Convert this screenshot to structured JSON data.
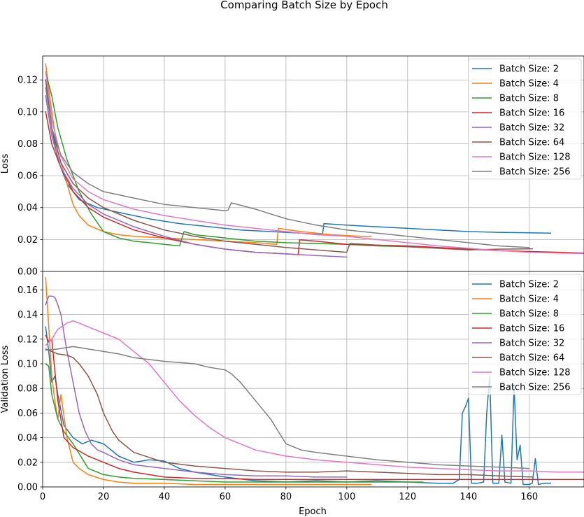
{
  "chart_data": {
    "type": "line",
    "title": "Comparing Batch Size by Epoch",
    "colors": {
      "Batch Size: 2": "#1f77b4",
      "Batch Size: 4": "#ff7f0e",
      "Batch Size: 8": "#2ca02c",
      "Batch Size: 16": "#d62728",
      "Batch Size: 32": "#9467bd",
      "Batch Size: 64": "#8c564b",
      "Batch Size: 128": "#e377c2",
      "Batch Size: 256": "#7f7f7f"
    },
    "xlabel": "Epoch",
    "xlim": [
      0,
      178
    ],
    "xticks": [
      0,
      20,
      40,
      60,
      80,
      100,
      120,
      140,
      160
    ],
    "grid": true,
    "legend_position": "top-right",
    "panels": [
      {
        "id": "loss",
        "ylabel": "Loss",
        "ylim": [
          0,
          0.135
        ],
        "yticks": [
          "0.00",
          "0.02",
          "0.04",
          "0.06",
          "0.08",
          "0.10",
          "0.12"
        ],
        "series": [
          {
            "name": "Batch Size: 2",
            "x": [
              1,
              3,
              5,
              8,
              12,
              18,
              25,
              35,
              45,
              55,
              65,
              75,
              85,
              92,
              92.5,
              100,
              110,
              120,
              130,
              140,
              150,
              160,
              167
            ],
            "y": [
              0.12,
              0.09,
              0.07,
              0.055,
              0.045,
              0.04,
              0.037,
              0.033,
              0.03,
              0.028,
              0.026,
              0.025,
              0.024,
              0.023,
              0.03,
              0.029,
              0.028,
              0.027,
              0.026,
              0.025,
              0.0245,
              0.0242,
              0.024
            ]
          },
          {
            "name": "Batch Size: 4",
            "x": [
              1,
              3,
              5,
              8,
              10,
              12,
              15,
              20,
              25,
              30,
              40,
              50,
              60,
              70,
              77,
              77.5,
              85,
              95,
              105,
              108
            ],
            "y": [
              0.13,
              0.1,
              0.075,
              0.055,
              0.042,
              0.035,
              0.029,
              0.025,
              0.023,
              0.022,
              0.021,
              0.02,
              0.019,
              0.018,
              0.017,
              0.027,
              0.025,
              0.023,
              0.022,
              0.022
            ]
          },
          {
            "name": "Batch Size: 8",
            "x": [
              1,
              3,
              5,
              8,
              12,
              16,
              20,
              25,
              30,
              35,
              40,
              45,
              46.5,
              50,
              60,
              70,
              80,
              90,
              100,
              110,
              120,
              125
            ],
            "y": [
              0.125,
              0.11,
              0.09,
              0.07,
              0.05,
              0.036,
              0.025,
              0.021,
              0.019,
              0.018,
              0.017,
              0.016,
              0.025,
              0.023,
              0.021,
              0.019,
              0.018,
              0.0175,
              0.017,
              0.016,
              0.0155,
              0.015
            ]
          },
          {
            "name": "Batch Size: 16",
            "x": [
              1,
              3,
              6,
              10,
              15,
              20,
              30,
              40,
              50,
              60,
              70,
              80,
              84,
              84.5,
              90,
              100,
              110,
              120,
              130,
              140,
              150,
              160,
              170,
              178
            ],
            "y": [
              0.1,
              0.08,
              0.065,
              0.05,
              0.04,
              0.034,
              0.026,
              0.021,
              0.017,
              0.014,
              0.012,
              0.011,
              0.0105,
              0.0198,
              0.019,
              0.017,
              0.0165,
              0.016,
              0.015,
              0.014,
              0.013,
              0.0125,
              0.012,
              0.0115
            ]
          },
          {
            "name": "Batch Size: 32",
            "x": [
              1,
              3,
              6,
              10,
              15,
              20,
              30,
              40,
              50,
              60,
              70,
              80,
              90,
              100
            ],
            "y": [
              0.11,
              0.085,
              0.065,
              0.052,
              0.042,
              0.036,
              0.028,
              0.022,
              0.017,
              0.014,
              0.012,
              0.011,
              0.01,
              0.009
            ]
          },
          {
            "name": "Batch Size: 64",
            "x": [
              1,
              3,
              6,
              10,
              15,
              20,
              30,
              40,
              50,
              60,
              70,
              80,
              90,
              100,
              101,
              110,
              120,
              130,
              140,
              150,
              161
            ],
            "y": [
              0.12,
              0.09,
              0.068,
              0.055,
              0.046,
              0.04,
              0.032,
              0.026,
              0.022,
              0.019,
              0.017,
              0.015,
              0.0135,
              0.012,
              0.0175,
              0.0165,
              0.0155,
              0.0145,
              0.0135,
              0.014,
              0.0142
            ]
          },
          {
            "name": "Batch Size: 128",
            "x": [
              1,
              3,
              6,
              10,
              15,
              20,
              30,
              40,
              50,
              60,
              70,
              80,
              90,
              100,
              110,
              120,
              130,
              140,
              150,
              160,
              170,
              178
            ],
            "y": [
              0.125,
              0.095,
              0.072,
              0.058,
              0.05,
              0.045,
              0.039,
              0.035,
              0.032,
              0.029,
              0.027,
              0.025,
              0.023,
              0.022,
              0.02,
              0.018,
              0.016,
              0.0145,
              0.013,
              0.012,
              0.0115,
              0.0112
            ]
          },
          {
            "name": "Batch Size: 256",
            "x": [
              1,
              3,
              6,
              10,
              15,
              20,
              30,
              40,
              50,
              60,
              61,
              62,
              70,
              80,
              90,
              100,
              110,
              120,
              130,
              140,
              150,
              160
            ],
            "y": [
              0.115,
              0.09,
              0.073,
              0.062,
              0.055,
              0.05,
              0.046,
              0.042,
              0.04,
              0.038,
              0.0385,
              0.043,
              0.039,
              0.033,
              0.029,
              0.026,
              0.024,
              0.022,
              0.02,
              0.018,
              0.016,
              0.015
            ]
          }
        ]
      },
      {
        "id": "validation",
        "ylabel": "Validation Loss",
        "ylim": [
          0,
          0.175
        ],
        "yticks": [
          "0.00",
          "0.02",
          "0.04",
          "0.06",
          "0.08",
          "0.10",
          "0.12",
          "0.14",
          "0.16"
        ],
        "series": [
          {
            "name": "Batch Size: 2",
            "x": [
              1,
              2,
              3,
              4,
              5,
              7,
              10,
              13,
              16,
              20,
              25,
              30,
              35,
              40,
              45,
              50,
              55,
              60,
              70,
              80,
              90,
              100,
              110,
              120,
              130,
              135,
              137,
              138,
              139,
              140,
              141,
              143,
              145,
              146,
              147,
              148,
              150,
              151,
              152,
              154,
              155,
              156,
              157,
              158,
              160,
              161,
              162,
              163,
              165,
              167
            ],
            "y": [
              0.13,
              0.11,
              0.085,
              0.09,
              0.075,
              0.05,
              0.04,
              0.035,
              0.038,
              0.035,
              0.025,
              0.02,
              0.022,
              0.021,
              0.015,
              0.012,
              0.01,
              0.008,
              0.005,
              0.004,
              0.005,
              0.004,
              0.005,
              0.004,
              0.003,
              0.003,
              0.006,
              0.06,
              0.065,
              0.072,
              0.003,
              0.003,
              0.004,
              0.06,
              0.09,
              0.003,
              0.003,
              0.042,
              0.004,
              0.003,
              0.082,
              0.022,
              0.034,
              0.002,
              0.002,
              0.003,
              0.023,
              0.002,
              0.003,
              0.003
            ]
          },
          {
            "name": "Batch Size: 4",
            "x": [
              1,
              2,
              3,
              4,
              5,
              6,
              8,
              10,
              12,
              15,
              20,
              25,
              30,
              40,
              50,
              60,
              70,
              80,
              90,
              100,
              108
            ],
            "y": [
              0.17,
              0.13,
              0.09,
              0.07,
              0.055,
              0.075,
              0.04,
              0.02,
              0.015,
              0.01,
              0.006,
              0.004,
              0.003,
              0.003,
              0.002,
              0.002,
              0.002,
              0.002,
              0.002,
              0.002,
              0.002
            ]
          },
          {
            "name": "Batch Size: 8",
            "x": [
              1,
              2,
              3,
              5,
              7,
              10,
              15,
              20,
              25,
              30,
              40,
              50,
              60,
              70,
              80,
              90,
              100,
              110,
              120,
              125
            ],
            "y": [
              0.1,
              0.098,
              0.075,
              0.055,
              0.045,
              0.035,
              0.015,
              0.01,
              0.008,
              0.007,
              0.006,
              0.005,
              0.004,
              0.004,
              0.004,
              0.004,
              0.004,
              0.004,
              0.004,
              0.004
            ]
          },
          {
            "name": "Batch Size: 16",
            "x": [
              1,
              2,
              3,
              5,
              7,
              10,
              15,
              20,
              25,
              30,
              40,
              50,
              60,
              70,
              80,
              90,
              100,
              110,
              120,
              130,
              140,
              150,
              160,
              170,
              178
            ],
            "y": [
              0.123,
              0.118,
              0.12,
              0.07,
              0.04,
              0.032,
              0.025,
              0.02,
              0.015,
              0.012,
              0.008,
              0.007,
              0.007,
              0.006,
              0.006,
              0.006,
              0.006,
              0.006,
              0.006,
              0.006,
              0.006,
              0.006,
              0.006,
              0.006,
              0.006
            ]
          },
          {
            "name": "Batch Size: 32",
            "x": [
              1,
              2,
              3,
              4,
              5,
              6,
              7,
              8,
              10,
              12,
              14,
              16,
              18,
              20,
              25,
              30,
              40,
              50,
              60,
              70,
              80,
              90,
              100
            ],
            "y": [
              0.148,
              0.155,
              0.155,
              0.154,
              0.148,
              0.14,
              0.125,
              0.11,
              0.085,
              0.06,
              0.045,
              0.035,
              0.03,
              0.028,
              0.022,
              0.018,
              0.015,
              0.012,
              0.01,
              0.009,
              0.009,
              0.008,
              0.008
            ]
          },
          {
            "name": "Batch Size: 64",
            "x": [
              1,
              3,
              5,
              8,
              10,
              12,
              15,
              18,
              20,
              23,
              25,
              30,
              40,
              50,
              60,
              70,
              80,
              90,
              100,
              110,
              120,
              130,
              140,
              150,
              161
            ],
            "y": [
              0.112,
              0.11,
              0.108,
              0.107,
              0.105,
              0.1,
              0.09,
              0.075,
              0.06,
              0.045,
              0.038,
              0.028,
              0.02,
              0.017,
              0.015,
              0.013,
              0.012,
              0.012,
              0.013,
              0.012,
              0.011,
              0.01,
              0.01,
              0.009,
              0.008
            ]
          },
          {
            "name": "Batch Size: 128",
            "x": [
              1,
              3,
              5,
              8,
              10,
              12,
              15,
              20,
              25,
              30,
              35,
              40,
              45,
              50,
              55,
              60,
              65,
              70,
              80,
              90,
              100,
              110,
              120,
              130,
              140,
              150,
              160,
              170,
              178
            ],
            "y": [
              0.115,
              0.12,
              0.128,
              0.133,
              0.135,
              0.133,
              0.13,
              0.125,
              0.12,
              0.11,
              0.1,
              0.085,
              0.07,
              0.058,
              0.048,
              0.04,
              0.035,
              0.03,
              0.025,
              0.022,
              0.02,
              0.018,
              0.016,
              0.015,
              0.014,
              0.013,
              0.013,
              0.012,
              0.012
            ]
          },
          {
            "name": "Batch Size: 256",
            "x": [
              1,
              5,
              10,
              15,
              20,
              25,
              30,
              40,
              50,
              55,
              60,
              62,
              65,
              70,
              75,
              80,
              85,
              90,
              100,
              110,
              120,
              130,
              140,
              150,
              160
            ],
            "y": [
              0.111,
              0.112,
              0.114,
              0.112,
              0.11,
              0.108,
              0.105,
              0.102,
              0.1,
              0.097,
              0.095,
              0.092,
              0.085,
              0.07,
              0.055,
              0.035,
              0.03,
              0.028,
              0.025,
              0.022,
              0.02,
              0.018,
              0.017,
              0.016,
              0.015
            ]
          }
        ]
      }
    ]
  }
}
